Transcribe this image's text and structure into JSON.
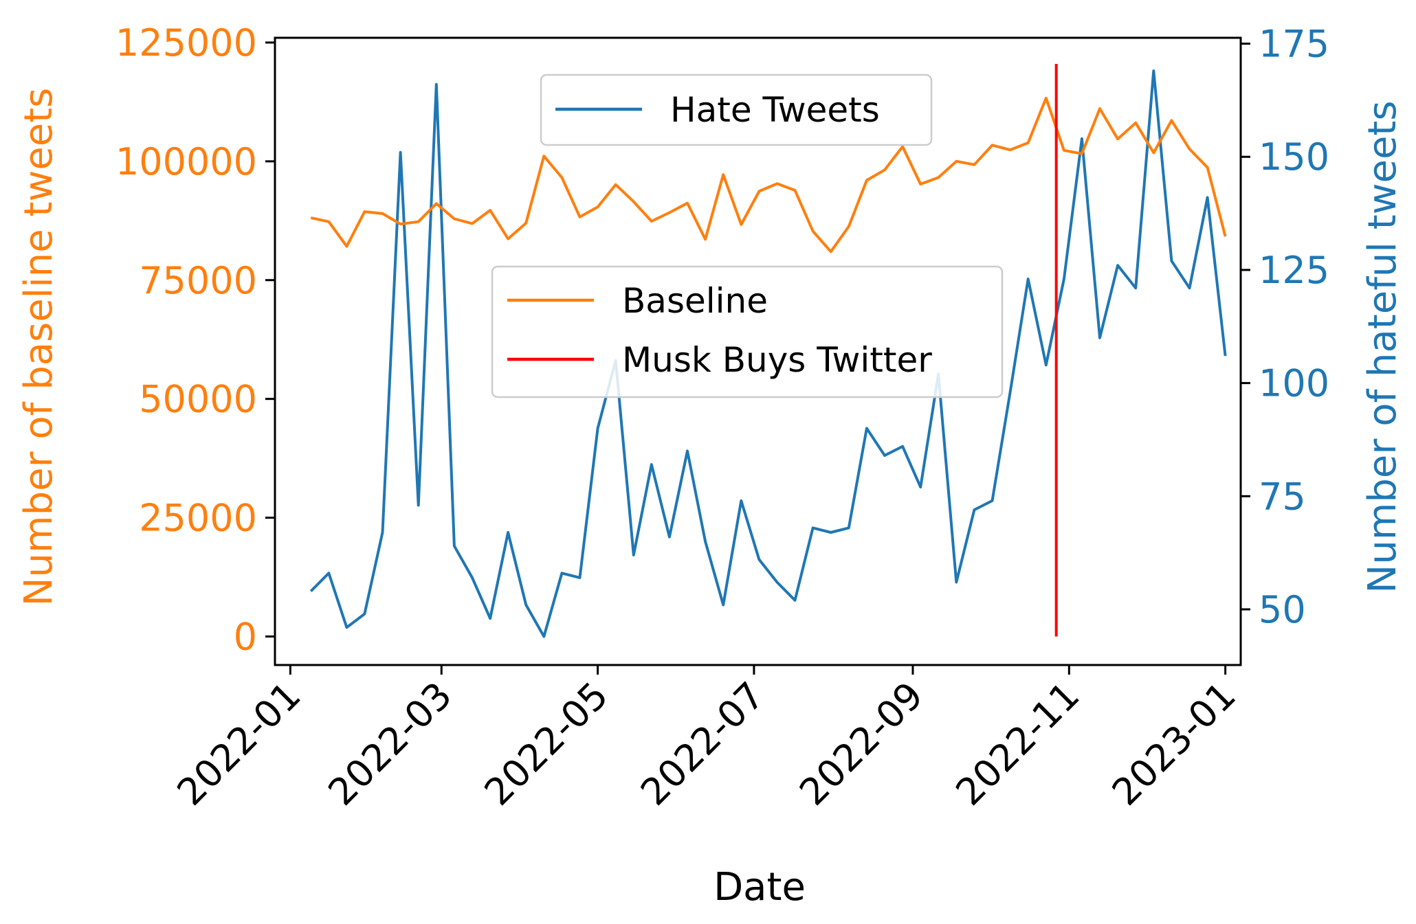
{
  "chart_data": {
    "type": "line",
    "title": "",
    "xlabel": "Date",
    "ylabel_left": "Number of baseline tweets",
    "ylabel_right": "Number of hateful tweets",
    "x_ticks": [
      "2022-01",
      "2022-03",
      "2022-05",
      "2022-07",
      "2022-09",
      "2022-11",
      "2023-01"
    ],
    "x_tick_dates": [
      "2022-01-01",
      "2022-03-01",
      "2022-05-01",
      "2022-07-01",
      "2022-09-01",
      "2022-11-01",
      "2023-01-01"
    ],
    "xlim": [
      "2021-12-26",
      "2023-01-07"
    ],
    "y_left_ticks": [
      "0",
      "25000",
      "50000",
      "75000",
      "100000",
      "125000"
    ],
    "y_left_lim": [
      -6000,
      126000
    ],
    "y_right_ticks": [
      "50",
      "75",
      "100",
      "125",
      "150",
      "175"
    ],
    "y_right_lim": [
      37.7,
      176.3
    ],
    "colors": {
      "baseline": "#ff7f0e",
      "hate": "#1f77b4",
      "event": "#ff0000"
    },
    "dates": [
      "2022-01-09",
      "2022-01-16",
      "2022-01-23",
      "2022-01-30",
      "2022-02-06",
      "2022-02-13",
      "2022-02-20",
      "2022-02-27",
      "2022-03-06",
      "2022-03-13",
      "2022-03-20",
      "2022-03-27",
      "2022-04-03",
      "2022-04-10",
      "2022-04-17",
      "2022-04-24",
      "2022-05-01",
      "2022-05-08",
      "2022-05-15",
      "2022-05-22",
      "2022-05-29",
      "2022-06-05",
      "2022-06-12",
      "2022-06-19",
      "2022-06-26",
      "2022-07-03",
      "2022-07-10",
      "2022-07-17",
      "2022-07-24",
      "2022-07-31",
      "2022-08-07",
      "2022-08-14",
      "2022-08-21",
      "2022-08-28",
      "2022-09-04",
      "2022-09-11",
      "2022-09-18",
      "2022-09-25",
      "2022-10-02",
      "2022-10-09",
      "2022-10-16",
      "2022-10-23",
      "2022-10-30",
      "2022-11-06",
      "2022-11-13",
      "2022-11-20",
      "2022-11-27",
      "2022-12-04",
      "2022-12-11",
      "2022-12-18",
      "2022-12-25",
      "2023-01-01"
    ],
    "series": [
      {
        "name": "Hate Tweets",
        "axis": "right",
        "values": [
          54,
          58,
          46,
          49,
          67,
          151,
          73,
          166,
          64,
          57,
          48,
          67,
          51,
          44,
          58,
          57,
          90,
          105,
          62,
          82,
          66,
          85,
          65,
          51,
          74,
          61,
          56,
          52,
          68,
          67,
          68,
          90,
          84,
          86,
          77,
          102,
          56,
          72,
          74,
          98,
          123,
          104,
          123,
          154,
          110,
          126,
          121,
          169,
          127,
          121,
          141,
          106
        ]
      },
      {
        "name": "Baseline",
        "axis": "left",
        "values": [
          88100,
          87300,
          82100,
          89400,
          89000,
          86800,
          87300,
          91100,
          87900,
          86900,
          89700,
          83700,
          87000,
          101100,
          96600,
          88300,
          90400,
          95100,
          91500,
          87400,
          89200,
          91200,
          83600,
          97200,
          86700,
          93700,
          95300,
          93900,
          85300,
          81000,
          86300,
          96000,
          98200,
          103100,
          95200,
          96600,
          100000,
          99300,
          103400,
          102400,
          103900,
          113300,
          102300,
          101600,
          111100,
          104700,
          108100,
          101800,
          108600,
          102600,
          98700,
          84200
        ]
      },
      {
        "name": "Musk Buys Twitter",
        "axis": "left",
        "type": "vline",
        "x": "2022-10-27",
        "y_range": [
          0,
          120500
        ]
      }
    ],
    "legends": [
      {
        "placement": "top-center",
        "entries": [
          "Hate Tweets"
        ]
      },
      {
        "placement": "center",
        "entries": [
          "Baseline",
          "Musk Buys Twitter"
        ]
      }
    ]
  }
}
